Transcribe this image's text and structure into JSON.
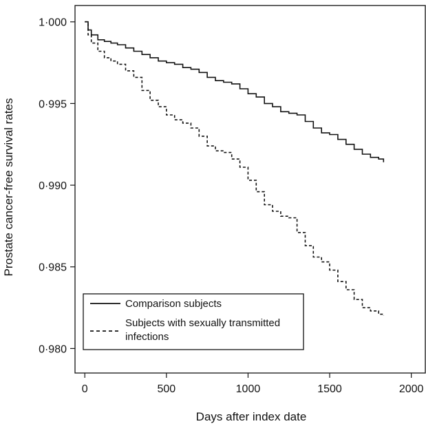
{
  "chart_data": {
    "type": "line",
    "title": "",
    "xlabel": "Days after index date",
    "ylabel": "Prostate cancer-free survival rates",
    "xlim": [
      -60,
      2090
    ],
    "ylim": [
      0.9785,
      1.001
    ],
    "xticks": [
      0,
      500,
      1000,
      1500,
      2000
    ],
    "xtick_labels": [
      "0",
      "500",
      "1000",
      "1500",
      "2000"
    ],
    "yticks": [
      0.98,
      0.985,
      0.99,
      0.995,
      1.0
    ],
    "ytick_labels": [
      "0·980",
      "0·985",
      "0·990",
      "0·995",
      "1·000"
    ],
    "grid": false,
    "legend_position": "bottom-left",
    "series": [
      {
        "name": "Comparison subjects",
        "style": "solid",
        "x": [
          0,
          20,
          40,
          80,
          120,
          160,
          200,
          250,
          300,
          350,
          400,
          450,
          500,
          550,
          600,
          650,
          700,
          750,
          800,
          850,
          900,
          950,
          1000,
          1050,
          1100,
          1150,
          1200,
          1250,
          1300,
          1350,
          1400,
          1450,
          1500,
          1550,
          1600,
          1650,
          1700,
          1750,
          1800,
          1830
        ],
        "y": [
          1.0,
          0.9995,
          0.9992,
          0.9989,
          0.9988,
          0.9987,
          0.9986,
          0.9984,
          0.9982,
          0.998,
          0.9978,
          0.9976,
          0.9975,
          0.9974,
          0.9972,
          0.9971,
          0.9969,
          0.9966,
          0.9964,
          0.9963,
          0.9962,
          0.9959,
          0.9956,
          0.9954,
          0.995,
          0.9948,
          0.9945,
          0.9944,
          0.9943,
          0.9939,
          0.9935,
          0.9932,
          0.9931,
          0.9928,
          0.9925,
          0.9922,
          0.9919,
          0.9917,
          0.9916,
          0.9914
        ]
      },
      {
        "name": "Subjects with sexually transmitted infections",
        "style": "dashed",
        "x": [
          0,
          20,
          40,
          80,
          120,
          160,
          200,
          250,
          300,
          350,
          400,
          450,
          500,
          550,
          600,
          650,
          700,
          750,
          800,
          850,
          900,
          950,
          1000,
          1050,
          1100,
          1150,
          1200,
          1250,
          1300,
          1350,
          1400,
          1450,
          1500,
          1550,
          1600,
          1650,
          1700,
          1750,
          1800,
          1830
        ],
        "y": [
          1.0,
          0.9992,
          0.9987,
          0.9982,
          0.9978,
          0.9976,
          0.9974,
          0.997,
          0.9966,
          0.9958,
          0.9952,
          0.9948,
          0.9943,
          0.994,
          0.9938,
          0.9935,
          0.993,
          0.9924,
          0.9921,
          0.992,
          0.9916,
          0.9911,
          0.9903,
          0.9896,
          0.9888,
          0.9884,
          0.9881,
          0.988,
          0.9871,
          0.9863,
          0.9856,
          0.9853,
          0.9848,
          0.9841,
          0.9836,
          0.983,
          0.9825,
          0.9823,
          0.9821,
          0.982
        ]
      }
    ]
  }
}
